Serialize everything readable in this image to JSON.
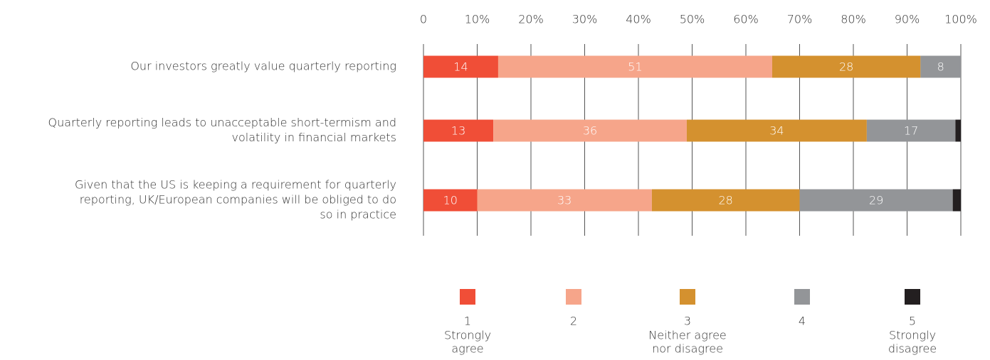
{
  "chart_data": {
    "type": "stacked-bar-horizontal",
    "categories": [
      [
        "Our investors greatly value quarterly reporting"
      ],
      [
        "Quarterly reporting leads to unacceptable short-termism and",
        "volatility in financial markets"
      ],
      [
        "Given that the US is keeping a requirement for quarterly",
        "reporting, UK/European companies will be obliged to do",
        "so in practice"
      ]
    ],
    "series": [
      {
        "name": "1",
        "description": [
          "Strongly",
          "agree"
        ],
        "color": "#f04e37",
        "values": [
          13.9,
          13,
          10
        ],
        "value_labels": [
          "14",
          "13",
          "10"
        ]
      },
      {
        "name": "2",
        "color": "#f6a58a",
        "values": [
          51,
          36,
          32.5
        ],
        "value_labels": [
          "51",
          "36",
          "33"
        ]
      },
      {
        "name": "3",
        "description": [
          "Neither agree",
          "nor disagree"
        ],
        "color": "#d4912f",
        "values": [
          27.6,
          33.5,
          27.5
        ],
        "value_labels": [
          "28",
          "34",
          "28"
        ]
      },
      {
        "name": "4",
        "color": "#939598",
        "values": [
          7.5,
          16.5,
          28.5
        ],
        "value_labels": [
          "8",
          "17",
          "29"
        ]
      },
      {
        "name": "5",
        "description": [
          "Strongly",
          "disagree"
        ],
        "color": "#231f20",
        "values": [
          0,
          1,
          1.5
        ]
      }
    ],
    "xlim": [
      0,
      100
    ],
    "xticks": [
      0,
      {
        "value": 10,
        "label": "10%"
      },
      {
        "value": 20,
        "label": "20%"
      },
      {
        "value": 30,
        "label": "30%"
      },
      {
        "value": 40,
        "label": "40%"
      },
      {
        "value": 50,
        "label": "50%"
      },
      {
        "value": 60,
        "label": "60%"
      },
      {
        "value": 70,
        "label": "70%"
      },
      {
        "value": 80,
        "label": "80%"
      },
      {
        "value": 90,
        "label": "90%"
      },
      {
        "value": 100,
        "label": "100%"
      }
    ],
    "grid": true
  }
}
